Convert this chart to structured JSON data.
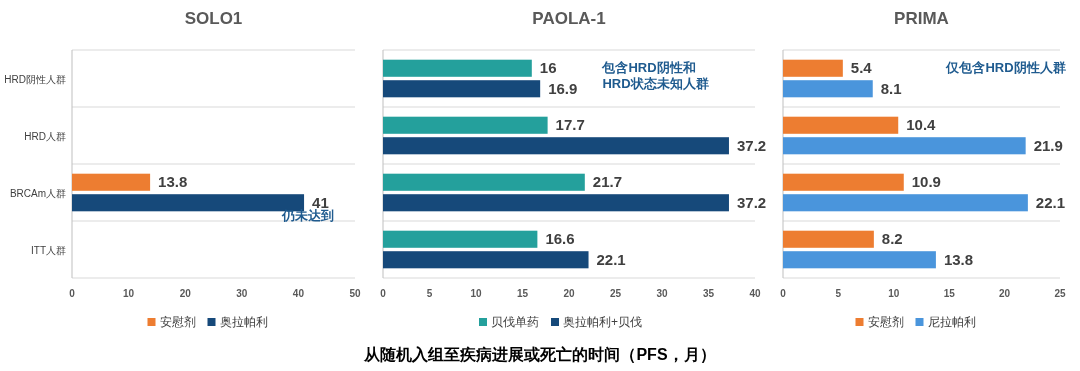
{
  "chart_data": [
    {
      "type": "bar",
      "orientation": "horizontal",
      "title": "SOLO1",
      "categories": [
        "HRD阴性人群",
        "HRD人群",
        "BRCAm人群",
        "ITT人群"
      ],
      "series": [
        {
          "name": "安慰剂",
          "color": "#ed7d31",
          "values": [
            null,
            null,
            13.8,
            null
          ]
        },
        {
          "name": "奥拉帕利",
          "color": "#16497a",
          "values": [
            null,
            null,
            41,
            null
          ]
        }
      ],
      "xlim": [
        0,
        50
      ],
      "xticks": [
        0,
        10,
        20,
        30,
        40,
        50
      ],
      "grid": "y",
      "legend": "bottom",
      "data_labels": true,
      "annotations": [
        {
          "text": "仍未达到",
          "x": 41,
          "y": "BRCAm人群"
        }
      ]
    },
    {
      "type": "bar",
      "orientation": "horizontal",
      "title": "PAOLA-1",
      "xlabel": "从随机入组至疾病进展或死亡的时间（PFS，月）",
      "categories": [
        "HRD阴性人群",
        "HRD人群",
        "BRCAm人群",
        "ITT人群"
      ],
      "series": [
        {
          "name": "贝伐单药",
          "color": "#24a09c",
          "values": [
            16,
            17.7,
            21.7,
            16.6
          ]
        },
        {
          "name": "奥拉帕利+贝伐",
          "color": "#16497a",
          "values": [
            16.9,
            37.2,
            37.2,
            22.1
          ]
        }
      ],
      "xlim": [
        0,
        40
      ],
      "xticks": [
        0,
        5,
        10,
        15,
        20,
        25,
        30,
        35,
        40
      ],
      "grid": "y",
      "legend": "bottom",
      "data_labels": true,
      "tick_labels": "x",
      "annotations": [
        "包含HRD阴性和\nHRD状态未知人群"
      ]
    },
    {
      "type": "bar",
      "orientation": "horizontal",
      "title": "PRIMA",
      "categories": [
        "HRD阴性人群",
        "HRD人群",
        "BRCAm人群",
        "ITT人群"
      ],
      "series": [
        {
          "name": "安慰剂",
          "color": "#ed7d31",
          "values": [
            5.4,
            10.4,
            10.9,
            8.2
          ]
        },
        {
          "name": "尼拉帕利",
          "color": "#4a95dc",
          "values": [
            8.1,
            21.9,
            22.1,
            13.8
          ]
        }
      ],
      "xlim": [
        0,
        25
      ],
      "xticks": [
        0,
        5,
        10,
        15,
        20,
        25
      ],
      "grid": "y",
      "legend": "bottom",
      "data_labels": true,
      "tick_labels": "x",
      "annotations": [
        "仅包含HRD阴性人群"
      ]
    }
  ]
}
